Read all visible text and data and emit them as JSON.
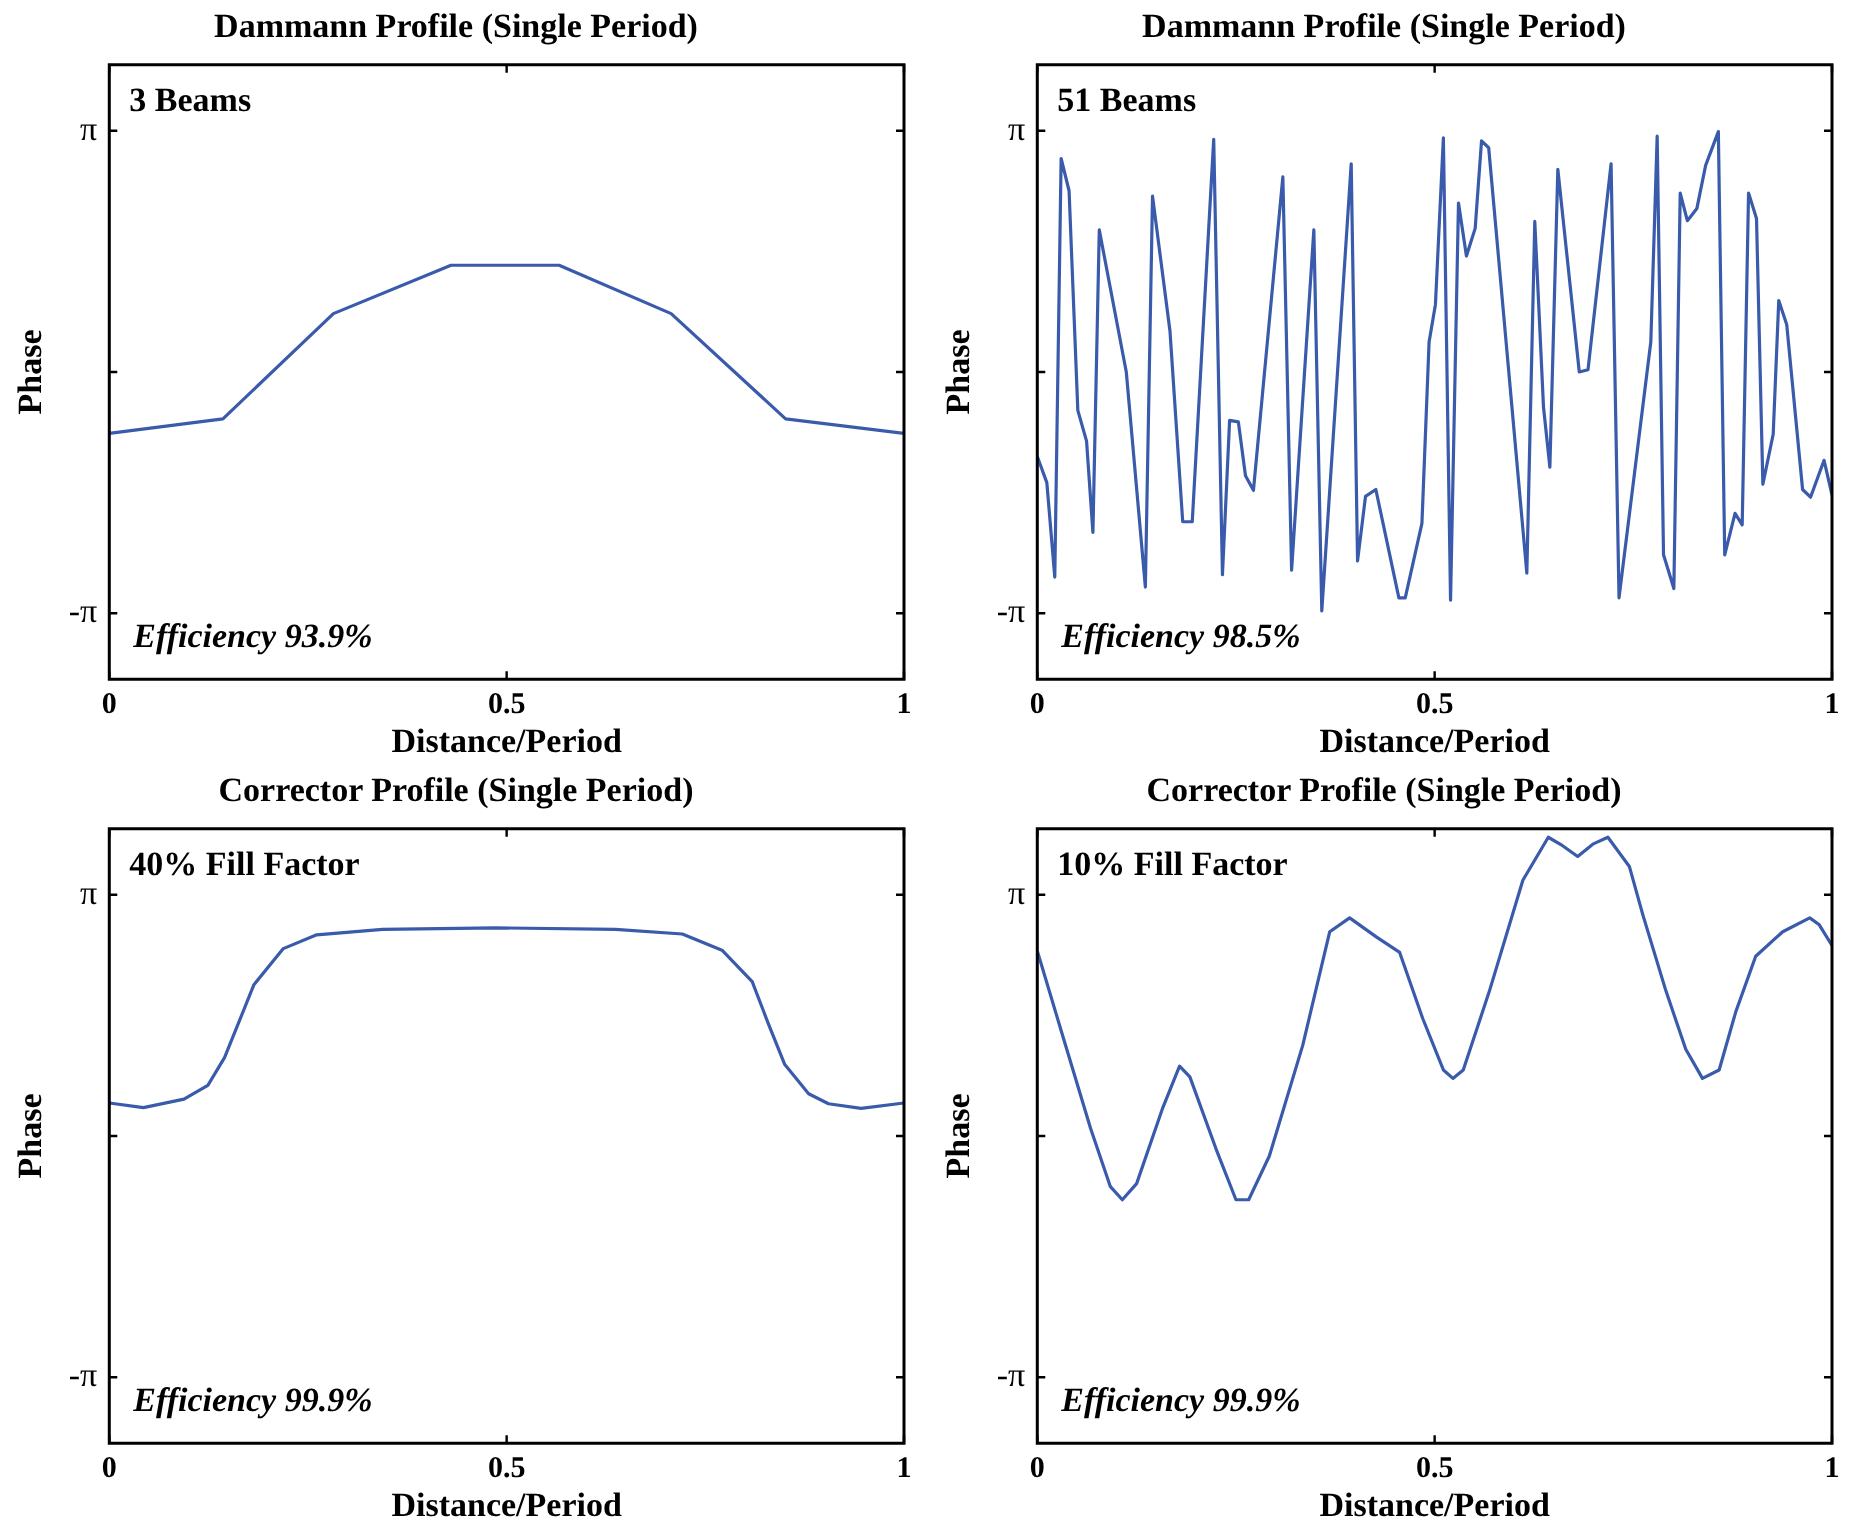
{
  "chart_data": [
    {
      "type": "line",
      "title": "Dammann Profile (Single Period)",
      "xlabel": "Distance/Period",
      "ylabel": "Phase",
      "annotations": [
        "3 Beams",
        "Efficiency 93.9%"
      ],
      "xlim": [
        0,
        1
      ],
      "xticks": [
        0,
        0.5,
        1
      ],
      "ylim": [
        -4,
        4
      ],
      "yticks": [
        {
          "value": -3.14159,
          "label": "-π"
        },
        {
          "value": 0,
          "label": null
        },
        {
          "value": 3.14159,
          "label": "π"
        }
      ],
      "series": [
        {
          "color": "#3a5bab",
          "x": [
            0,
            0.143,
            0.282,
            0.43,
            0.566,
            0.707,
            0.851,
            1
          ],
          "values": [
            -0.8,
            -0.61,
            0.76,
            1.39,
            1.39,
            0.76,
            -0.61,
            -0.8
          ]
        }
      ]
    },
    {
      "type": "line",
      "title": "Dammann Profile (Single Period)",
      "xlabel": "Distance/Period",
      "ylabel": "Phase",
      "annotations": [
        "51 Beams",
        "Efficiency 98.5%"
      ],
      "xlim": [
        0,
        1
      ],
      "xticks": [
        0,
        0.5,
        1
      ],
      "ylim": [
        -4,
        4
      ],
      "yticks": [
        {
          "value": -3.14159,
          "label": "-π"
        },
        {
          "value": 0,
          "label": null
        },
        {
          "value": 3.14159,
          "label": "π"
        }
      ],
      "series": [
        {
          "color": "#3a5bab",
          "x": [
            0,
            0.012,
            0.022,
            0.03,
            0.04,
            0.051,
            0.062,
            0.07,
            0.078,
            0.112,
            0.136,
            0.145,
            0.167,
            0.183,
            0.195,
            0.222,
            0.233,
            0.242,
            0.253,
            0.262,
            0.272,
            0.309,
            0.32,
            0.348,
            0.358,
            0.395,
            0.403,
            0.413,
            0.426,
            0.455,
            0.463,
            0.484,
            0.493,
            0.501,
            0.511,
            0.52,
            0.53,
            0.54,
            0.551,
            0.559,
            0.568,
            0.616,
            0.626,
            0.637,
            0.645,
            0.655,
            0.682,
            0.693,
            0.722,
            0.732,
            0.772,
            0.78,
            0.788,
            0.801,
            0.809,
            0.818,
            0.83,
            0.841,
            0.857,
            0.865,
            0.878,
            0.887,
            0.895,
            0.905,
            0.913,
            0.926,
            0.933,
            0.943,
            0.963,
            0.973,
            0.99,
            1
          ],
          "values": [
            -1.1,
            -1.44,
            -2.67,
            2.78,
            2.36,
            -0.5,
            -0.9,
            -2.09,
            1.85,
            0,
            -2.8,
            2.29,
            0.53,
            -1.95,
            -1.95,
            3.03,
            -2.64,
            -0.63,
            -0.65,
            -1.35,
            -1.54,
            2.54,
            -2.58,
            1.85,
            -3.11,
            2.71,
            -2.46,
            -1.62,
            -1.53,
            -2.94,
            -2.94,
            -1.97,
            0.39,
            0.88,
            3.05,
            -2.97,
            2.2,
            1.51,
            1.87,
            3.01,
            2.92,
            -2.62,
            1.96,
            -0.46,
            -1.24,
            2.64,
            0,
            0.03,
            2.71,
            -2.94,
            0.39,
            3.07,
            -2.38,
            -2.82,
            2.33,
            1.97,
            2.13,
            2.69,
            3.13,
            -2.38,
            -1.84,
            -1.99,
            2.33,
            2,
            -1.46,
            -0.81,
            0.93,
            0.62,
            -1.53,
            -1.63,
            -1.15,
            -1.6
          ]
        }
      ]
    },
    {
      "type": "line",
      "title": "Corrector Profile (Single Period)",
      "xlabel": "Distance/Period",
      "ylabel": "Phase",
      "annotations": [
        "40% Fill Factor",
        "Efficiency 99.9%"
      ],
      "xlim": [
        0,
        1
      ],
      "xticks": [
        0,
        0.5,
        1
      ],
      "ylim": [
        -4,
        4
      ],
      "yticks": [
        {
          "value": -3.14159,
          "label": "-π"
        },
        {
          "value": 0,
          "label": null
        },
        {
          "value": 3.14159,
          "label": "π"
        }
      ],
      "series": [
        {
          "color": "#3a5bab",
          "x": [
            0,
            0.043,
            0.094,
            0.124,
            0.145,
            0.161,
            0.182,
            0.219,
            0.261,
            0.344,
            0.487,
            0.637,
            0.721,
            0.771,
            0.809,
            0.829,
            0.85,
            0.88,
            0.905,
            0.946,
            1
          ],
          "values": [
            0.43,
            0.37,
            0.48,
            0.66,
            1.02,
            1.43,
            1.97,
            2.44,
            2.62,
            2.69,
            2.71,
            2.69,
            2.63,
            2.42,
            2.01,
            1.47,
            0.93,
            0.55,
            0.42,
            0.36,
            0.43
          ]
        }
      ]
    },
    {
      "type": "line",
      "title": "Corrector Profile (Single Period)",
      "xlabel": "Distance/Period",
      "ylabel": "Phase",
      "annotations": [
        "10% Fill Factor",
        "Efficiency 99.9%"
      ],
      "xlim": [
        0,
        1
      ],
      "xticks": [
        0,
        0.5,
        1
      ],
      "ylim": [
        -4,
        4
      ],
      "yticks": [
        {
          "value": -3.14159,
          "label": "-π"
        },
        {
          "value": 0,
          "label": null
        },
        {
          "value": 3.14159,
          "label": "π"
        }
      ],
      "series": [
        {
          "color": "#3a5bab",
          "x": [
            0,
            0.033,
            0.067,
            0.092,
            0.107,
            0.125,
            0.158,
            0.179,
            0.192,
            0.225,
            0.25,
            0.266,
            0.292,
            0.334,
            0.368,
            0.393,
            0.427,
            0.456,
            0.485,
            0.511,
            0.523,
            0.536,
            0.569,
            0.611,
            0.643,
            0.661,
            0.68,
            0.699,
            0.718,
            0.745,
            0.762,
            0.791,
            0.816,
            0.837,
            0.858,
            0.879,
            0.904,
            0.938,
            0.972,
            0.984,
            1
          ],
          "values": [
            2.41,
            1.27,
            0.1,
            -0.66,
            -0.83,
            -0.62,
            0.37,
            0.91,
            0.77,
            -0.17,
            -0.83,
            -0.83,
            -0.26,
            1.18,
            2.66,
            2.84,
            2.59,
            2.39,
            1.53,
            0.86,
            0.75,
            0.86,
            1.89,
            3.33,
            3.89,
            3.78,
            3.64,
            3.8,
            3.89,
            3.51,
            2.88,
            1.89,
            1.13,
            0.75,
            0.86,
            1.62,
            2.34,
            2.66,
            2.84,
            2.75,
            2.48
          ]
        }
      ]
    }
  ]
}
